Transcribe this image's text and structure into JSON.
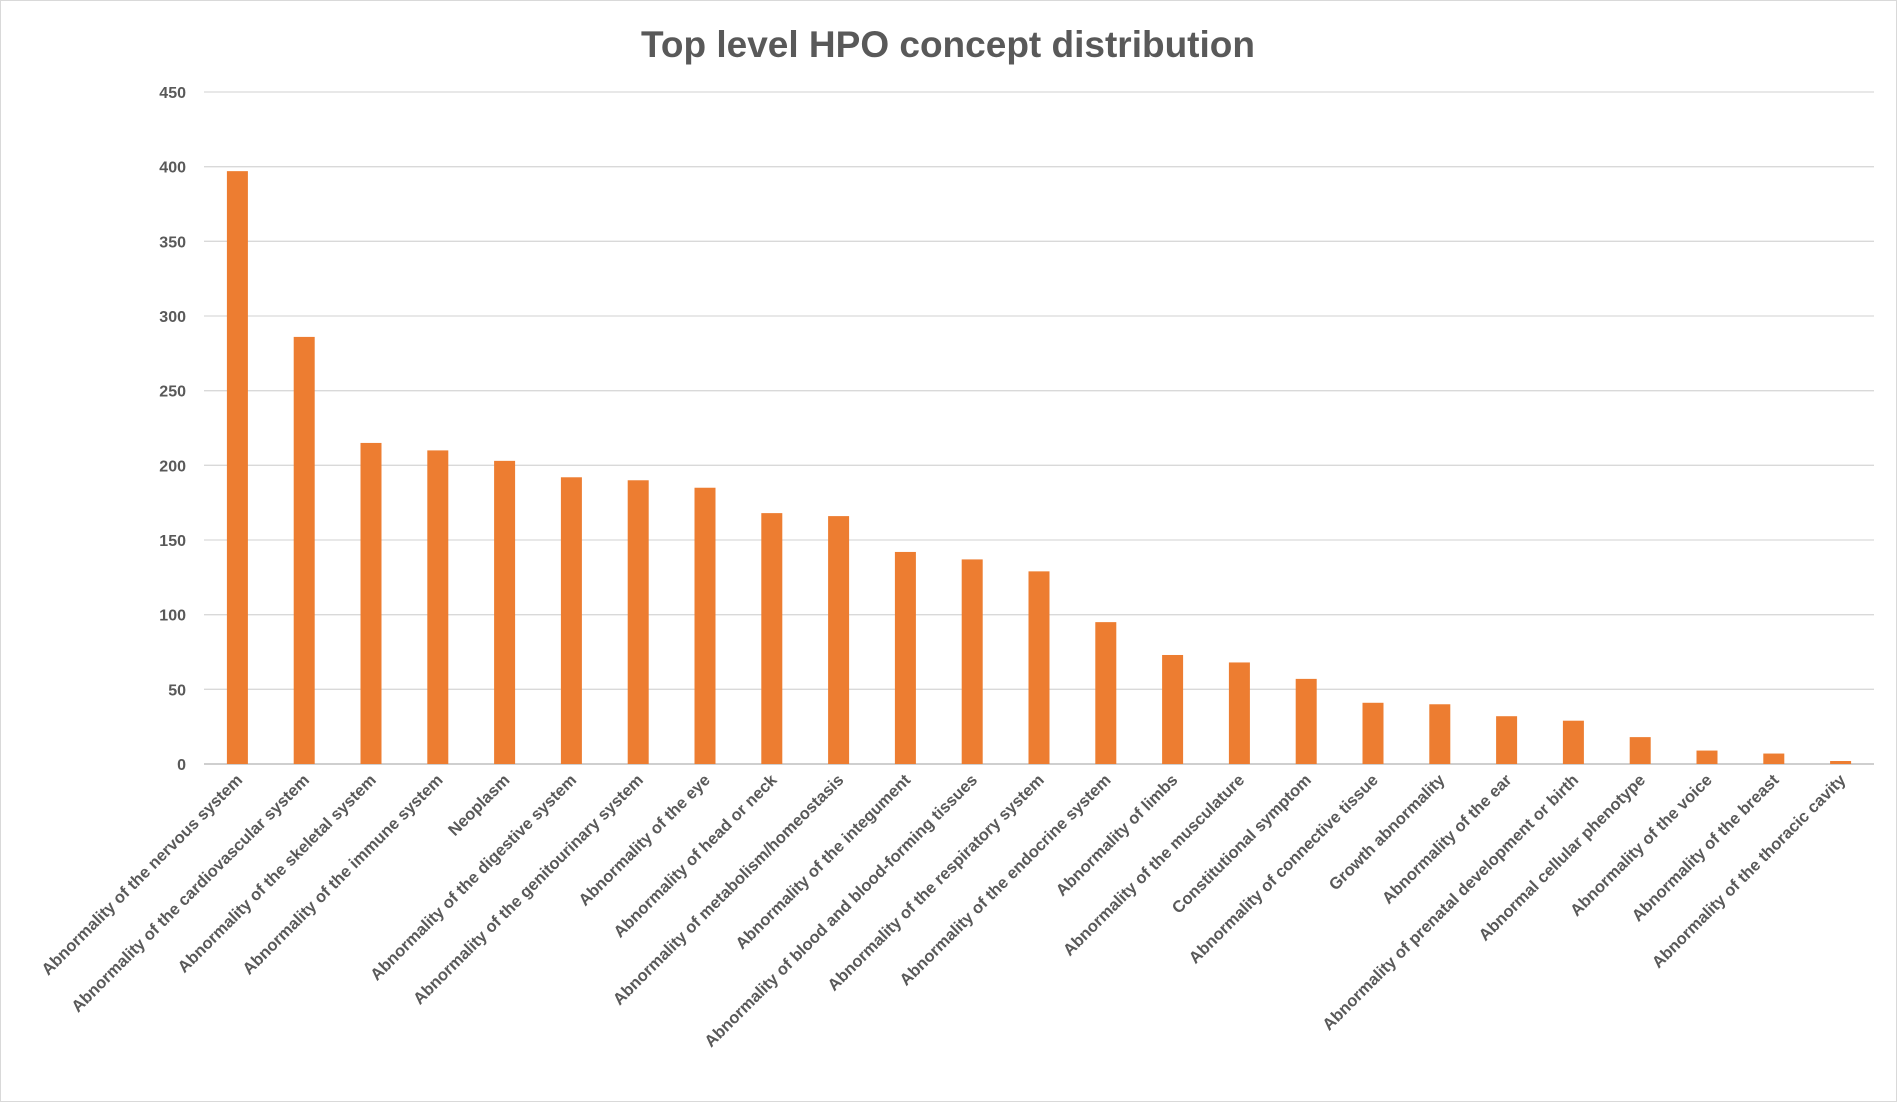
{
  "chart_data": {
    "type": "bar",
    "title": "Top level HPO concept distribution",
    "xlabel": "",
    "ylabel": "",
    "ylim": [
      0,
      450
    ],
    "yticks": [
      0,
      50,
      100,
      150,
      200,
      250,
      300,
      350,
      400,
      450
    ],
    "grid": true,
    "legend": "none",
    "bar_color": "#ED7D31",
    "categories": [
      "Abnormality of the nervous system",
      "Abnormality of the cardiovascular system",
      "Abnormality of the skeletal system",
      "Abnormality of the immune system",
      "Neoplasm",
      "Abnormality of the digestive system",
      "Abnormality of the genitourinary system",
      "Abnormality of the eye",
      "Abnormality of head or neck",
      "Abnormality of metabolism/homeostasis",
      "Abnormality of the integument",
      "Abnormality of blood and blood-forming tissues",
      "Abnormality of the respiratory system",
      "Abnormality of the endocrine system",
      "Abnormality of limbs",
      "Abnormality of the musculature",
      "Constitutional symptom",
      "Abnormality of connective tissue",
      "Growth abnormality",
      "Abnormality of the ear",
      "Abnormality of prenatal development or birth",
      "Abnormal cellular phenotype",
      "Abnormality of the voice",
      "Abnormality of the breast",
      "Abnormality of the thoracic cavity"
    ],
    "values": [
      397,
      286,
      215,
      210,
      203,
      192,
      190,
      185,
      168,
      166,
      142,
      137,
      129,
      95,
      73,
      68,
      57,
      41,
      40,
      32,
      29,
      18,
      9,
      7,
      2
    ]
  }
}
